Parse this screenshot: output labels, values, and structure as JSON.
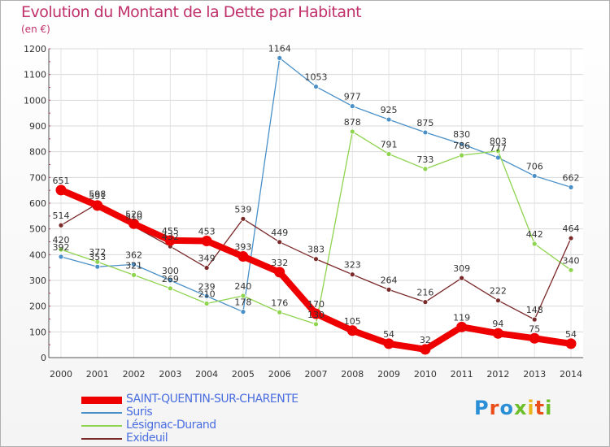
{
  "title": "Evolution du Montant de la Dette par Habitant",
  "subtitle": "(en €)",
  "logo": {
    "text": "Proxiti",
    "colors": [
      "#2a8fd6",
      "#e94e1b",
      "#2a8fd6",
      "#6cbf2a",
      "#e9b51b",
      "#e94e1b",
      "#6cbf2a"
    ]
  },
  "colors": {
    "title": "#c0306a",
    "axis_label": "#c0306a",
    "value_label": "#333333",
    "legend_text": "#4a6ee0"
  },
  "chart_data": {
    "type": "line",
    "title": "Evolution du Montant de la Dette par Habitant",
    "ylabel": "(en €)",
    "xlabel": "",
    "ylim": [
      0,
      1200
    ],
    "yticks": [
      0,
      100,
      200,
      300,
      400,
      500,
      600,
      700,
      800,
      900,
      1000,
      1100,
      1200
    ],
    "x": [
      "2000",
      "2001",
      "2002",
      "2003",
      "2004",
      "2005",
      "2006",
      "2007",
      "2008",
      "2009",
      "2010",
      "2011",
      "2012",
      "2013",
      "2014"
    ],
    "grid": true,
    "legend_position": "bottom",
    "series": [
      {
        "name": "SAINT-QUENTIN-SUR-CHARENTE",
        "color": "#ee0000",
        "style": "thick",
        "values": [
          651,
          591,
          520,
          455,
          453,
          393,
          332,
          170,
          105,
          54,
          32,
          119,
          94,
          75,
          54
        ]
      },
      {
        "name": "Suris",
        "color": "#4a90c8",
        "style": "thin",
        "values": [
          392,
          353,
          362,
          300,
          239,
          178,
          1164,
          1053,
          977,
          925,
          875,
          830,
          777,
          706,
          662
        ]
      },
      {
        "name": "Lésignac-Durand",
        "color": "#8ed44e",
        "style": "thin",
        "values": [
          420,
          372,
          321,
          269,
          210,
          240,
          176,
          130,
          878,
          791,
          733,
          786,
          803,
          442,
          340
        ]
      },
      {
        "name": "Exideuil",
        "color": "#7b2a2a",
        "style": "thin",
        "values": [
          514,
          598,
          510,
          432,
          349,
          539,
          449,
          383,
          323,
          264,
          216,
          309,
          222,
          148,
          464
        ]
      }
    ]
  }
}
